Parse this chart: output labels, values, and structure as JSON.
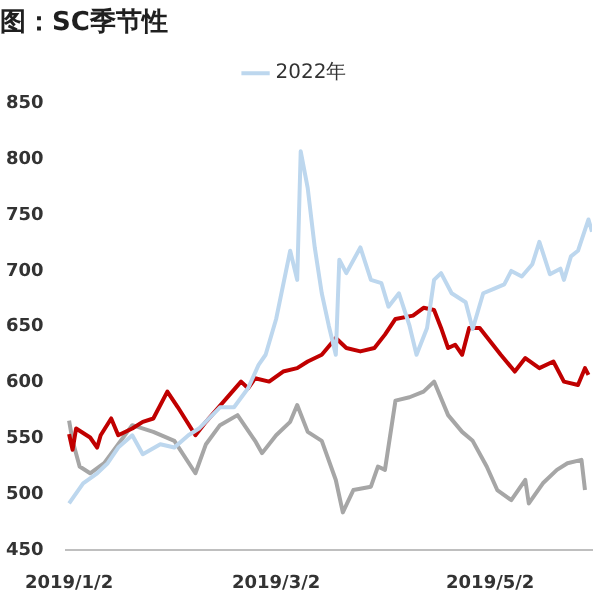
{
  "chart_data": {
    "type": "line",
    "title": "图：SC季节性",
    "xlim": [
      "2019-01-01",
      "2019-05-31"
    ],
    "xticks": [
      {
        "value": "2019-01-02",
        "label": "2019/1/2"
      },
      {
        "value": "2019-03-02",
        "label": "2019/3/2"
      },
      {
        "value": "2019-05-02",
        "label": "2019/5/2"
      }
    ],
    "ylim": [
      450,
      850
    ],
    "yticks": [
      450,
      500,
      550,
      600,
      650,
      700,
      750,
      800,
      850
    ],
    "grid": false,
    "legend": "top",
    "marker": "none",
    "line_style": "solid",
    "series": [
      {
        "name": "2022年",
        "color": "#bdd7ee",
        "x": [
          "2019-01-02",
          "2019-01-06",
          "2019-01-10",
          "2019-01-13",
          "2019-01-16",
          "2019-01-20",
          "2019-01-23",
          "2019-01-28",
          "2019-02-01",
          "2019-02-05",
          "2019-02-08",
          "2019-02-14",
          "2019-02-18",
          "2019-02-22",
          "2019-02-25",
          "2019-02-27",
          "2019-03-02",
          "2019-03-06",
          "2019-03-08",
          "2019-03-09",
          "2019-03-11",
          "2019-03-13",
          "2019-03-15",
          "2019-03-17",
          "2019-03-19",
          "2019-03-20",
          "2019-03-22",
          "2019-03-26",
          "2019-03-29",
          "2019-04-01",
          "2019-04-03",
          "2019-04-06",
          "2019-04-09",
          "2019-04-11",
          "2019-04-14",
          "2019-04-16",
          "2019-04-18",
          "2019-04-21",
          "2019-04-25",
          "2019-04-27",
          "2019-04-30",
          "2019-05-03",
          "2019-05-06",
          "2019-05-08",
          "2019-05-11",
          "2019-05-14",
          "2019-05-16",
          "2019-05-19",
          "2019-05-22",
          "2019-05-23",
          "2019-05-25",
          "2019-05-27",
          "2019-05-30",
          "2019-05-31"
        ],
        "values": [
          492,
          510,
          519,
          528,
          542,
          553,
          536,
          545,
          542,
          553,
          559,
          578,
          578,
          595,
          616,
          625,
          657,
          718,
          692,
          807,
          774,
          721,
          680,
          651,
          625,
          710,
          698,
          721,
          692,
          689,
          668,
          680,
          651,
          625,
          649,
          692,
          698,
          680,
          672,
          648,
          680,
          684,
          688,
          700,
          695,
          706,
          726,
          697,
          702,
          692,
          713,
          718,
          746,
          735
        ]
      },
      {
        "color": "#c00000",
        "x": [
          "2019-01-02",
          "2019-01-03",
          "2019-01-04",
          "2019-01-08",
          "2019-01-10",
          "2019-01-11",
          "2019-01-14",
          "2019-01-16",
          "2019-01-20",
          "2019-01-23",
          "2019-01-26",
          "2019-01-30",
          "2019-02-02",
          "2019-02-07",
          "2019-02-10",
          "2019-02-20",
          "2019-02-22",
          "2019-02-24",
          "2019-02-28",
          "2019-03-04",
          "2019-03-08",
          "2019-03-11",
          "2019-03-15",
          "2019-03-19",
          "2019-03-22",
          "2019-03-26",
          "2019-03-30",
          "2019-04-02",
          "2019-04-05",
          "2019-04-10",
          "2019-04-13",
          "2019-04-16",
          "2019-04-18",
          "2019-04-20",
          "2019-04-22",
          "2019-04-24",
          "2019-04-26",
          "2019-04-29",
          "2019-05-05",
          "2019-05-09",
          "2019-05-12",
          "2019-05-16",
          "2019-05-20",
          "2019-05-23",
          "2019-05-27",
          "2019-05-29",
          "2019-05-30"
        ],
        "values": [
          554,
          540,
          559,
          551,
          542,
          553,
          568,
          553,
          559,
          565,
          568,
          592,
          578,
          553,
          565,
          601,
          595,
          604,
          601,
          610,
          613,
          619,
          625,
          640,
          631,
          628,
          631,
          643,
          657,
          660,
          667,
          665,
          649,
          631,
          634,
          625,
          649,
          649,
          625,
          610,
          622,
          613,
          619,
          601,
          598,
          613,
          607
        ]
      },
      {
        "color": "#a6a6a6",
        "x": [
          "2019-01-02",
          "2019-01-03",
          "2019-01-05",
          "2019-01-08",
          "2019-01-12",
          "2019-01-16",
          "2019-01-20",
          "2019-01-26",
          "2019-02-01",
          "2019-02-07",
          "2019-02-10",
          "2019-02-14",
          "2019-02-19",
          "2019-02-24",
          "2019-02-26",
          "2019-03-02",
          "2019-03-06",
          "2019-03-08",
          "2019-03-11",
          "2019-03-15",
          "2019-03-19",
          "2019-03-21",
          "2019-03-24",
          "2019-03-29",
          "2019-03-31",
          "2019-04-02",
          "2019-04-05",
          "2019-04-09",
          "2019-04-13",
          "2019-04-16",
          "2019-04-20",
          "2019-04-24",
          "2019-04-27",
          "2019-05-01",
          "2019-05-04",
          "2019-05-08",
          "2019-05-12",
          "2019-05-13",
          "2019-05-17",
          "2019-05-21",
          "2019-05-24",
          "2019-05-28",
          "2019-05-29"
        ],
        "values": [
          566,
          548,
          525,
          519,
          528,
          545,
          562,
          556,
          548,
          519,
          545,
          562,
          571,
          548,
          537,
          553,
          565,
          580,
          556,
          548,
          513,
          484,
          504,
          507,
          525,
          522,
          584,
          587,
          592,
          601,
          571,
          556,
          548,
          525,
          504,
          495,
          513,
          492,
          510,
          522,
          528,
          531,
          504
        ]
      }
    ]
  }
}
